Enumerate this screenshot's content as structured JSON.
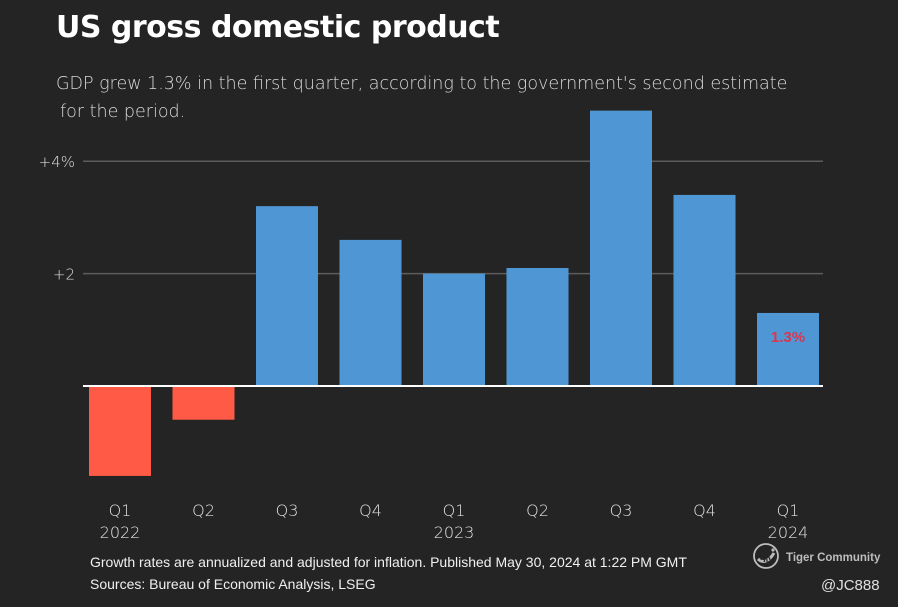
{
  "header": {
    "title": "US gross domestic product",
    "subtitle_line1": "GDP grew 1.3% in the first quarter, according to the government's second estimate",
    "subtitle_line2": "for the period."
  },
  "footer": {
    "note": "Growth rates are annualized and adjusted for inflation. Published May 30, 2024 at 1:22 PM GMT",
    "sources": "Sources: Bureau of Economic Analysis, LSEG"
  },
  "watermark": {
    "brand": "Tiger Community",
    "handle": "@JC888",
    "icon": "tiger-logo-icon"
  },
  "colors": {
    "positive": "#4f97d4",
    "negative": "#ff5a46",
    "highlight_label": "#d9364f",
    "grid": "#5c5c5c",
    "baseline": "#ffffff"
  },
  "chart_data": {
    "type": "bar",
    "title": "US gross domestic product",
    "xlabel": "",
    "ylabel": "",
    "ylim": [
      -2,
      5
    ],
    "yticks": [
      {
        "value": 2,
        "label": "+2"
      },
      {
        "value": 4,
        "label": "+4%"
      }
    ],
    "grid": true,
    "categories": [
      {
        "q": "Q1",
        "year": "2022"
      },
      {
        "q": "Q2",
        "year": ""
      },
      {
        "q": "Q3",
        "year": ""
      },
      {
        "q": "Q4",
        "year": ""
      },
      {
        "q": "Q1",
        "year": "2023"
      },
      {
        "q": "Q2",
        "year": ""
      },
      {
        "q": "Q3",
        "year": ""
      },
      {
        "q": "Q4",
        "year": ""
      },
      {
        "q": "Q1",
        "year": "2024"
      }
    ],
    "values": [
      -1.6,
      -0.6,
      3.2,
      2.6,
      2.0,
      2.1,
      4.9,
      3.4,
      1.3
    ],
    "annotations": [
      {
        "index": 8,
        "text": "1.3%"
      }
    ]
  }
}
